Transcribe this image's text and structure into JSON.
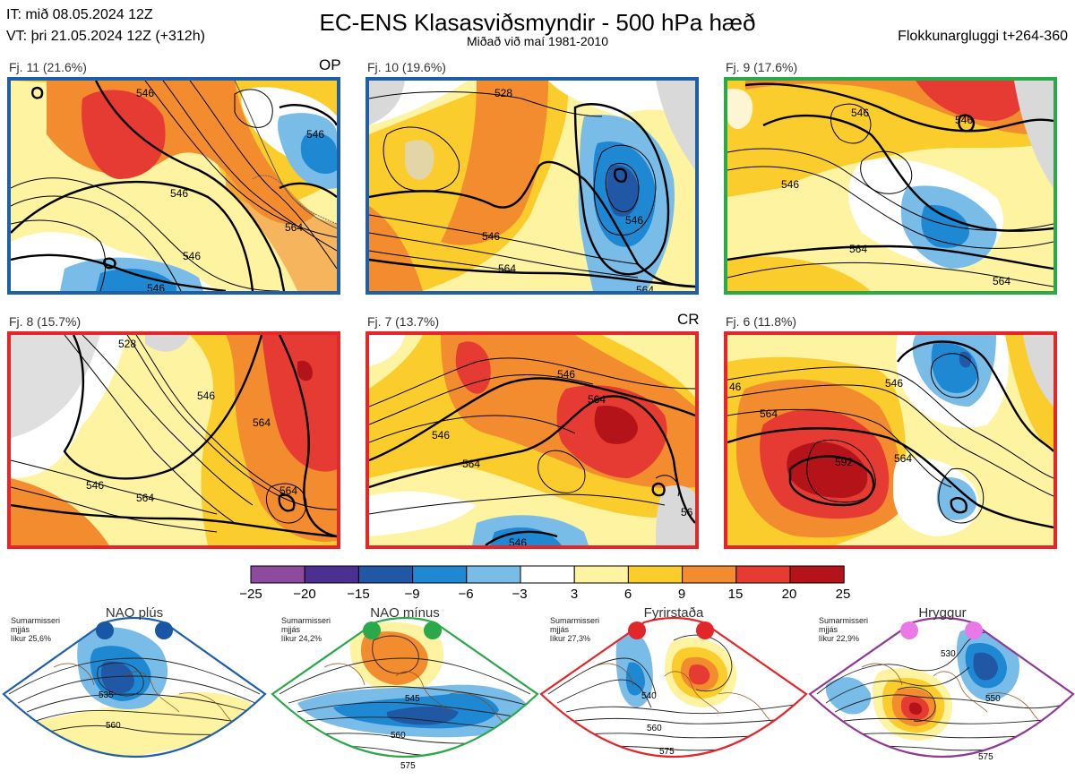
{
  "header": {
    "it_line": "IT: mið 08.05.2024 12Z",
    "vt_line": "VT: þri 21.05.2024 12Z  (+312h)",
    "title": "EC-ENS Klasasviðsmyndir - 500 hPa hæð",
    "subtitle": "Miðað við maí 1981-2010",
    "window": "Flokkunargluggi t+264-360"
  },
  "colors": {
    "frame_blue": "#1f5fa8",
    "frame_green": "#2aa84a",
    "frame_red": "#e3262a",
    "frame_purple": "#8e3a96",
    "land": "#d9d9d9"
  },
  "panels": [
    {
      "label": "Fj. 11 (21.6%)",
      "tag": "OP",
      "frame": "blue",
      "contours": [
        "546",
        "546",
        "546",
        "564",
        "546",
        "546"
      ]
    },
    {
      "label": "Fj. 10 (19.6%)",
      "tag": "",
      "frame": "blue",
      "contours": [
        "528",
        "546",
        "546",
        "564",
        "564"
      ]
    },
    {
      "label": "Fj. 9 (17.6%)",
      "tag": "",
      "frame": "green",
      "contours": [
        "546",
        "546",
        "546",
        "564",
        "564"
      ]
    },
    {
      "label": "Fj. 8 (15.7%)",
      "tag": "",
      "frame": "red",
      "contours": [
        "546",
        "564",
        "546",
        "564",
        "564",
        "528"
      ]
    },
    {
      "label": "Fj. 7 (13.7%)",
      "tag": "CR",
      "frame": "red",
      "contours": [
        "546",
        "546",
        "564",
        "564",
        "546",
        "56"
      ]
    },
    {
      "label": "Fj. 6 (11.8%)",
      "tag": "",
      "frame": "red",
      "contours": [
        "546",
        "564",
        "564",
        "592",
        "46"
      ]
    }
  ],
  "colorbar": {
    "ticks": [
      "−25",
      "−20",
      "−15",
      "−9",
      "−6",
      "−3",
      "3",
      "6",
      "9",
      "15",
      "20",
      "25"
    ],
    "colors": [
      "#8e4a9c",
      "#4b2f91",
      "#2158a6",
      "#1e88d2",
      "#79bce8",
      "#ffffff",
      "#fdf3a0",
      "#fbcd2c",
      "#f28c2e",
      "#e63b32",
      "#b41419"
    ]
  },
  "regimes": [
    {
      "title": "NAO plús",
      "note_1": "Sumarmisseri",
      "note_2": "mjjás",
      "note_3": "líkur 25,6%",
      "contours": [
        "535",
        "560"
      ],
      "dot_color": "#1757a6",
      "frame": "blue"
    },
    {
      "title": "NAO mínus",
      "note_1": "Sumarmisseri",
      "note_2": "mjjás",
      "note_3": "líkur 24,2%",
      "contours": [
        "545",
        "560",
        "575"
      ],
      "dot_color": "#2aa84a",
      "frame": "green"
    },
    {
      "title": "Fyrirstaða",
      "note_1": "Sumarmisseri",
      "note_2": "mjjás",
      "note_3": "líkur 27,3%",
      "contours": [
        "540",
        "560",
        "575"
      ],
      "dot_color": "#e3262a",
      "frame": "red"
    },
    {
      "title": "Hryggur",
      "note_1": "Sumarmisseri",
      "note_2": "mjjás",
      "note_3": "líkur 22,9%",
      "contours": [
        "530",
        "550",
        "575"
      ],
      "dot_color": "#e879e6",
      "frame": "purple"
    }
  ]
}
